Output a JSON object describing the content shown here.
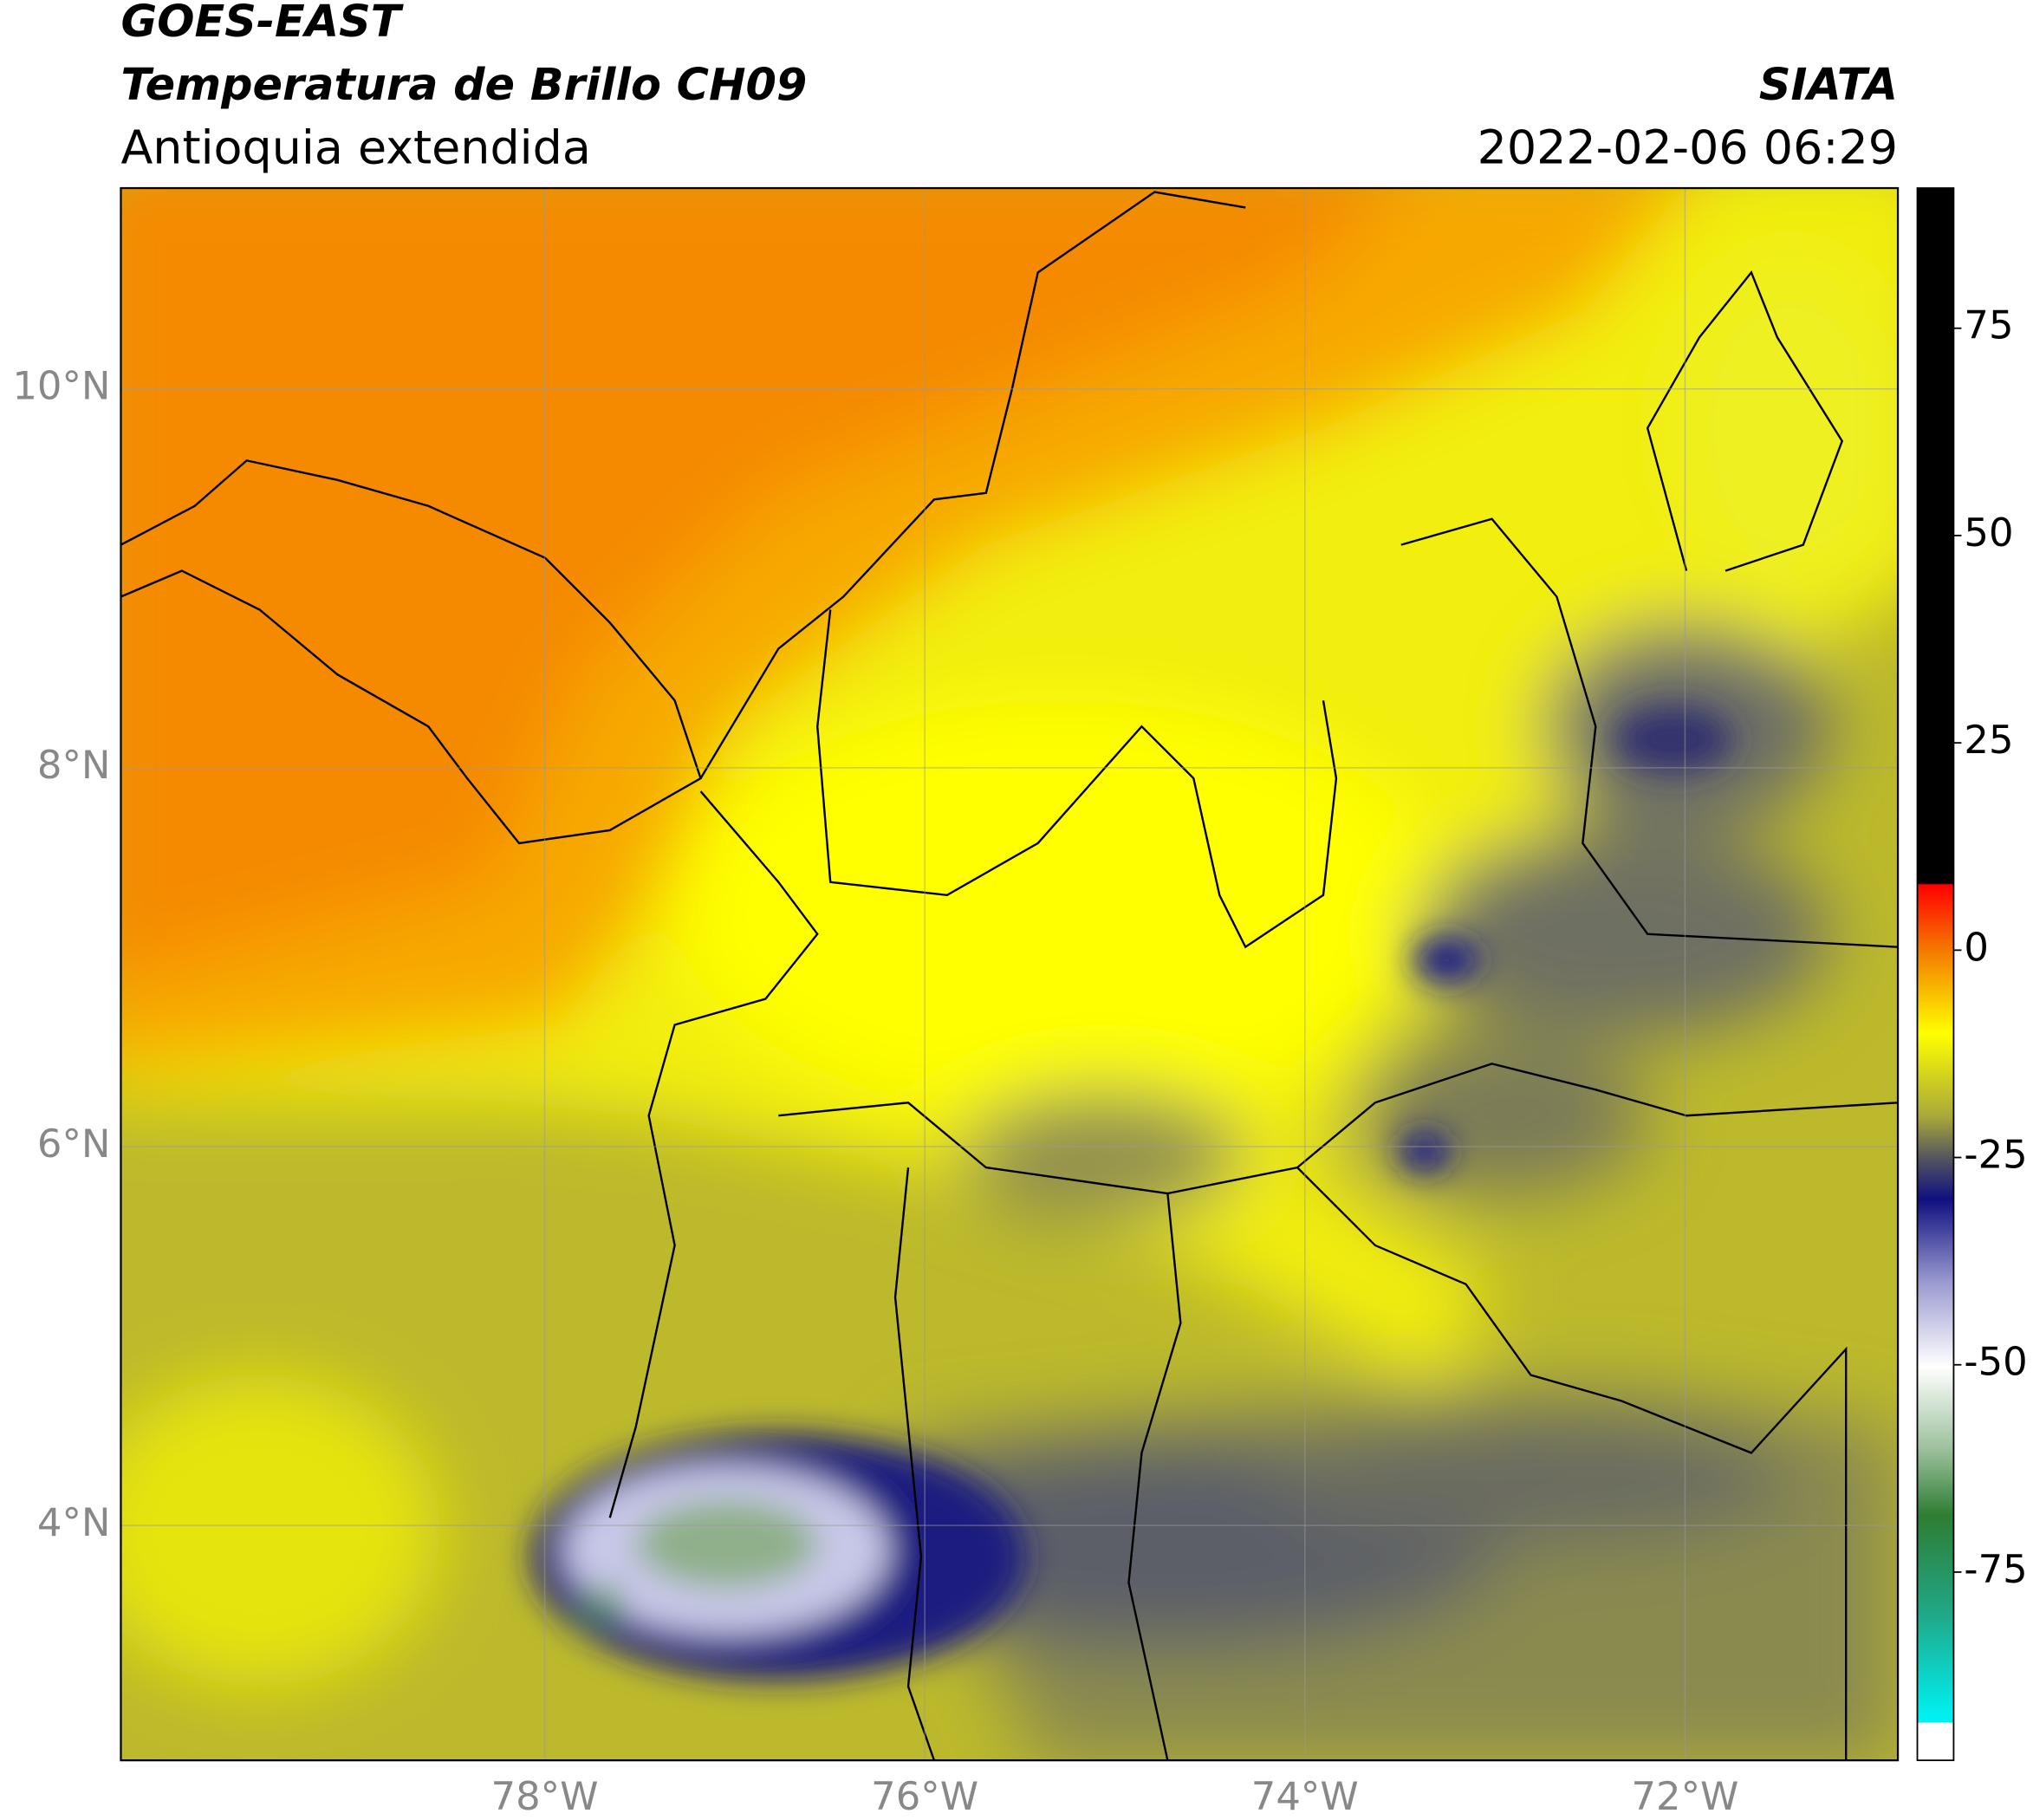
{
  "header": {
    "title_line1": "GOES-EAST",
    "title_line2": "Temperatura de Brillo CH09",
    "subtitle": "Antioquia extendida",
    "source": "SIATA",
    "timestamp": "2022-02-06 06:29"
  },
  "map": {
    "xlim": [
      -80.23,
      -70.88
    ],
    "ylim": [
      2.76,
      11.06
    ],
    "xticks": [
      {
        "value": -78,
        "label": "78°W"
      },
      {
        "value": -76,
        "label": "76°W"
      },
      {
        "value": -74,
        "label": "74°W"
      },
      {
        "value": -72,
        "label": "72°W"
      }
    ],
    "yticks": [
      {
        "value": 4,
        "label": "4°N"
      },
      {
        "value": 6,
        "label": "6°N"
      },
      {
        "value": 8,
        "label": "8°N"
      },
      {
        "value": 10,
        "label": "10°N"
      }
    ],
    "grid": true
  },
  "colorbar": {
    "lim": [
      -97.7,
      91.9
    ],
    "ticks": [
      -75,
      -50,
      -25,
      0,
      25,
      50,
      75
    ]
  }
}
